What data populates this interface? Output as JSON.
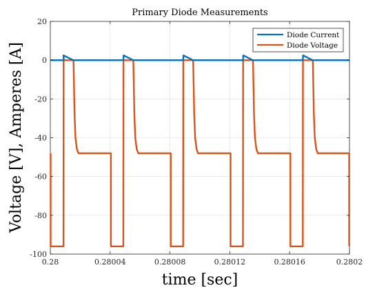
{
  "chart_data": {
    "type": "line",
    "title": "Primary Diode Measurements",
    "xlabel": "time [sec]",
    "ylabel": "Voltage [V], Amperes [A]",
    "xlim": [
      0.28,
      0.2802
    ],
    "ylim": [
      -100,
      20
    ],
    "grid": true,
    "legend_position": "top-right",
    "x_ticks": [
      0.28,
      0.28004,
      0.28008,
      0.28012,
      0.28016,
      0.2802
    ],
    "x_tick_labels": [
      "0.28",
      "0.28004",
      "0.28008",
      "0.28012",
      "0.28016",
      "0.2802"
    ],
    "y_ticks": [
      -100,
      -80,
      -60,
      -40,
      -20,
      0,
      20
    ],
    "y_tick_labels": [
      "-100",
      "-80",
      "-60",
      "-40",
      "-20",
      "0",
      "20"
    ],
    "series": [
      {
        "name": "Diode Current",
        "color": "#0072BD",
        "x": [
          0.28,
          0.280009,
          0.2800088,
          0.2800154,
          0.2800488,
          0.280049,
          0.2800554,
          0.2800888,
          0.280089,
          0.2800954,
          0.2801288,
          0.280129,
          0.2801354,
          0.2801688,
          0.280169,
          0.2801754,
          0.2802
        ],
        "y": [
          0,
          0,
          2.5,
          0,
          0,
          2.5,
          0,
          0,
          2.5,
          0,
          0,
          2.5,
          0,
          0,
          2.5,
          0,
          0
        ]
      },
      {
        "name": "Diode Voltage",
        "color": "#D95319",
        "x": [
          0.2800002,
          0.2800002,
          0.2800088,
          0.2800089,
          0.2800155,
          0.2800162,
          0.2800168,
          0.2800178,
          0.2800188,
          0.2800405,
          0.2800405,
          0.2800488,
          0.2800489,
          0.2800555,
          0.2800562,
          0.2800568,
          0.2800578,
          0.2800588,
          0.2800805,
          0.2800805,
          0.2800888,
          0.2800889,
          0.2800955,
          0.2800962,
          0.2800968,
          0.2800978,
          0.2800988,
          0.2801205,
          0.2801205,
          0.2801288,
          0.2801289,
          0.2801355,
          0.2801362,
          0.2801368,
          0.2801378,
          0.2801388,
          0.2801605,
          0.2801605,
          0.2801688,
          0.2801689,
          0.2801755,
          0.2801762,
          0.2801768,
          0.2801778,
          0.2801788,
          0.2801998,
          0.2801998
        ],
        "y": [
          -48,
          -96,
          -96,
          0,
          0,
          -28,
          -40,
          -46,
          -48,
          -48,
          -96,
          -96,
          0,
          0,
          -28,
          -40,
          -46,
          -48,
          -48,
          -96,
          -96,
          0,
          0,
          -28,
          -40,
          -46,
          -48,
          -48,
          -96,
          -96,
          0,
          0,
          -28,
          -40,
          -46,
          -48,
          -48,
          -96,
          -96,
          0,
          0,
          -28,
          -40,
          -46,
          -48,
          -48,
          -96
        ]
      }
    ]
  }
}
